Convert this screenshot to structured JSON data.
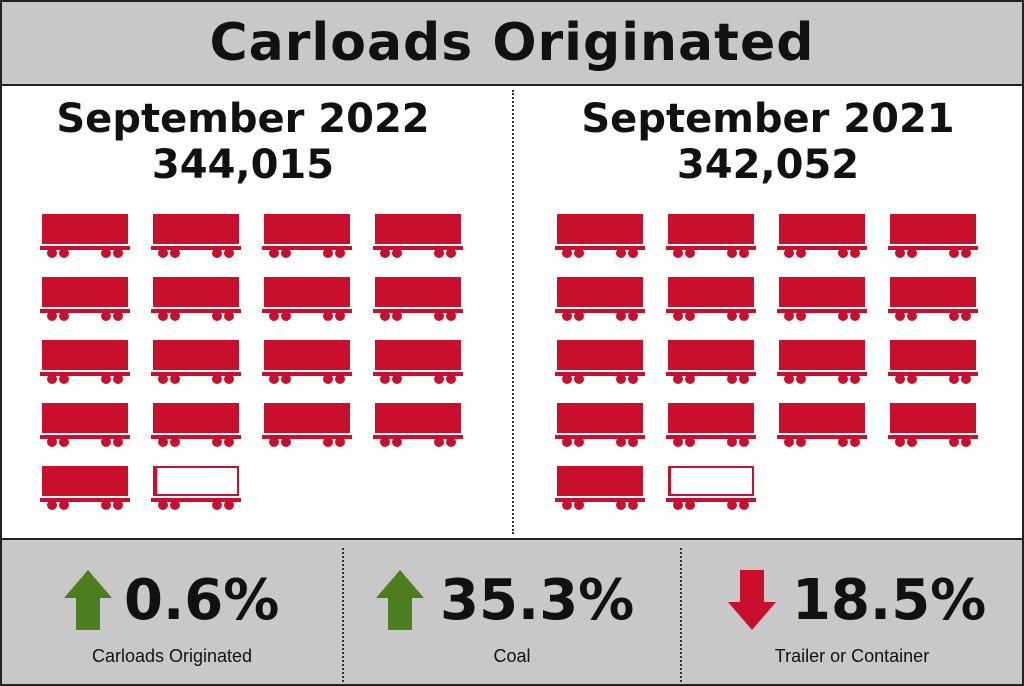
{
  "title": "Carloads Originated",
  "colors": {
    "car": "#c8102e",
    "arrow_up": "#4e7d1f",
    "arrow_down": "#c8102e",
    "panel_bg": "#c8c8c8"
  },
  "chart_data": {
    "type": "pictograph",
    "title": "Carloads Originated",
    "series": [
      {
        "name": "September 2022",
        "value_label": "344,015",
        "value": 344015,
        "full_icons": 17,
        "partial_icon_fill": 0.05
      },
      {
        "name": "September 2021",
        "value_label": "342,052",
        "value": 342052,
        "full_icons": 17,
        "partial_icon_fill": 0.03
      }
    ],
    "icon": "freight-car-icon",
    "icons_per_row": 4
  },
  "stats": [
    {
      "direction": "up",
      "value": "0.6%",
      "label": "Carloads Originated"
    },
    {
      "direction": "up",
      "value": "35.3%",
      "label": "Coal"
    },
    {
      "direction": "down",
      "value": "18.5%",
      "label": "Trailer or Container"
    }
  ]
}
